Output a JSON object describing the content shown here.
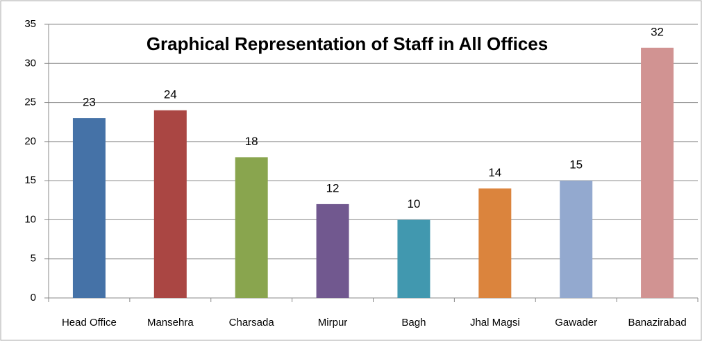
{
  "chart_data": {
    "type": "bar",
    "title": "Graphical Representation of Staff in All Offices",
    "categories": [
      "Head Office",
      "Mansehra",
      "Charsada",
      "Mirpur",
      "Bagh",
      "Jhal Magsi",
      "Gawader",
      "Banazirabad"
    ],
    "values": [
      23,
      24,
      18,
      12,
      10,
      14,
      15,
      32
    ],
    "colors": [
      "#4572a7",
      "#aa4643",
      "#89a54e",
      "#71588f",
      "#4198af",
      "#db843d",
      "#93a9cf",
      "#d19392"
    ],
    "ylim": [
      0,
      35
    ],
    "yticks": [
      0,
      5,
      10,
      15,
      20,
      25,
      30,
      35
    ],
    "grid": true
  }
}
